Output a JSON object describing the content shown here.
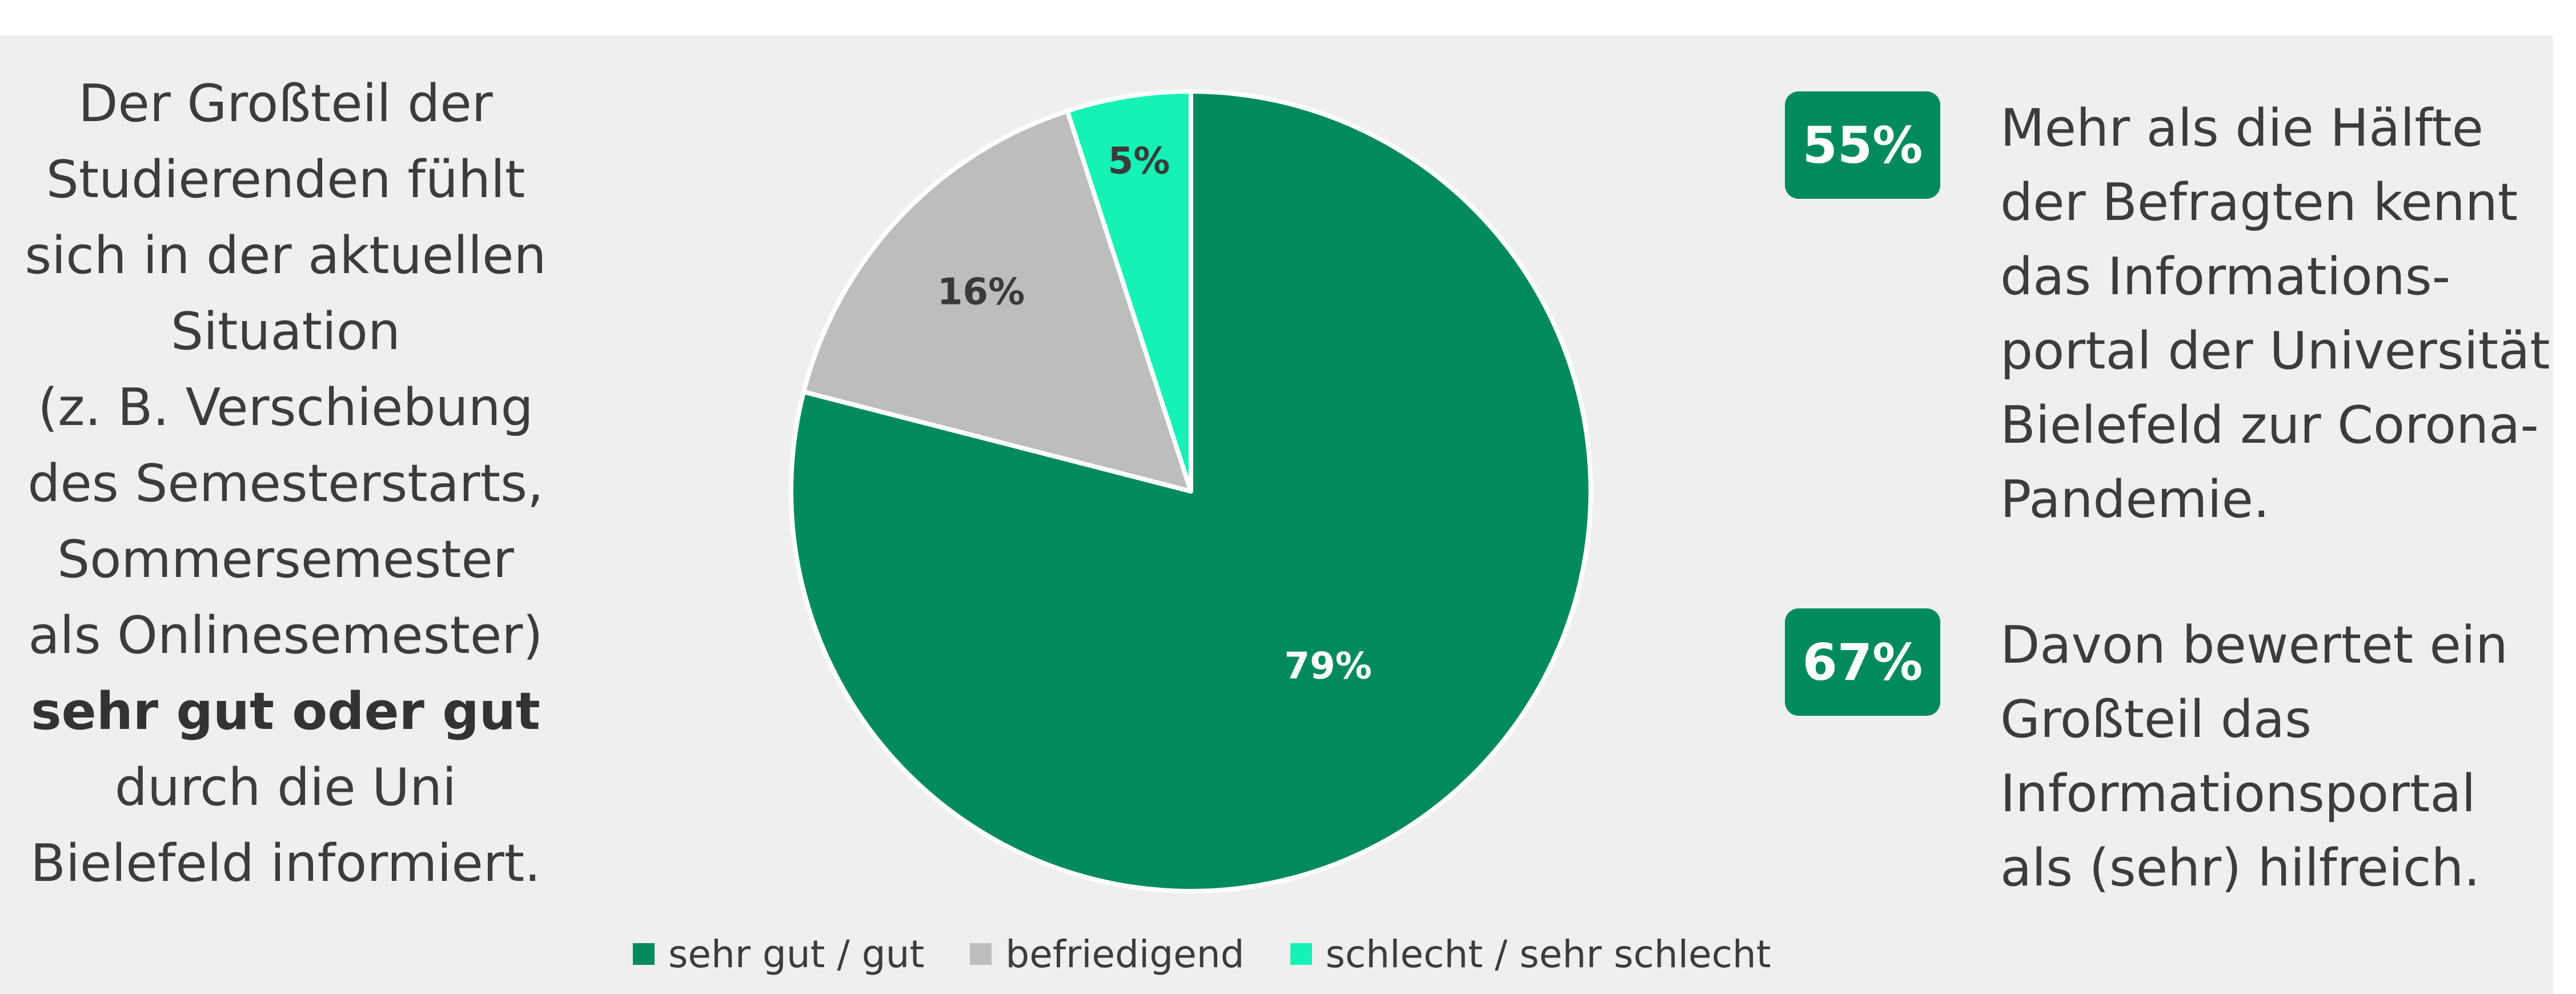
{
  "left_statement": {
    "lines": [
      "Der Großteil der",
      "Studierenden fühlt",
      "sich in der aktuellen",
      "Situation",
      "(z. B. Verschiebung",
      "des Semesterstarts,",
      "Sommersemester",
      "als Onlinesemester)"
    ],
    "emphasis": "sehr gut oder gut",
    "lines_after": [
      "durch die Uni",
      "Bielefeld informiert."
    ]
  },
  "chart_data": {
    "type": "pie",
    "slices": [
      {
        "name": "sehr gut / gut",
        "value": 79,
        "label": "79%",
        "color": "#008a5e",
        "label_color": "#ffffff"
      },
      {
        "name": "befriedigend",
        "value": 16,
        "label": "16%",
        "color": "#bdbdbd",
        "label_color": "#3a3a3a"
      },
      {
        "name": "schlecht / sehr schlecht",
        "value": 5,
        "label": "5%",
        "color": "#16f2b4",
        "label_color": "#3a3a3a"
      }
    ],
    "legend_placement": "bottom"
  },
  "stats": [
    {
      "value": "55%",
      "lines": [
        "Mehr als die Hälfte",
        "der Befragten kennt",
        "das Informations-",
        "portal der Universität",
        "Bielefeld zur Corona-",
        "Pandemie."
      ]
    },
    {
      "value": "67%",
      "lines": [
        "Davon bewertet ein",
        "Großteil das",
        "Informationsportal",
        "als (sehr) hilfreich."
      ]
    }
  ],
  "colors": {
    "accent": "#008a5e",
    "panel_background": "#efefef"
  }
}
